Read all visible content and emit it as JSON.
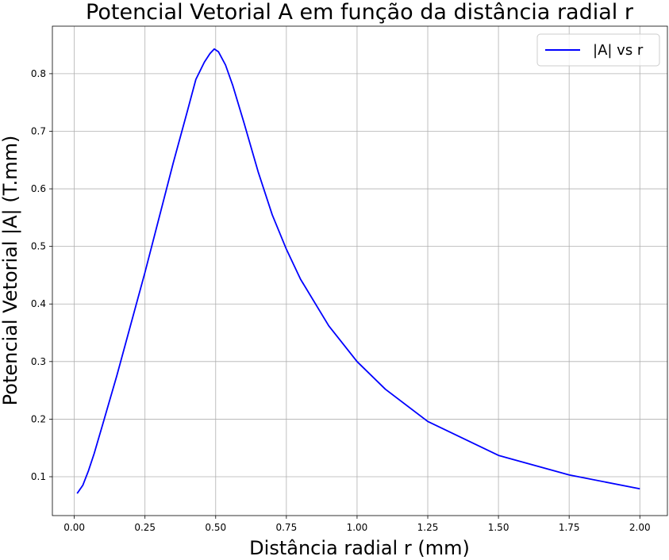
{
  "chart_data": {
    "type": "line",
    "title": "Potencial Vetorial A em função da distância radial r",
    "xlabel": "Distância radial r (mm)",
    "ylabel": "Potencial Vetorial |A| (T.mm)",
    "xlim": [
      -0.0775,
      2.0975
    ],
    "ylim": [
      0.0325,
      0.8825
    ],
    "xticks": [
      0.0,
      0.25,
      0.5,
      0.75,
      1.0,
      1.25,
      1.5,
      1.75,
      2.0
    ],
    "xtick_labels": [
      "0.00",
      "0.25",
      "0.50",
      "0.75",
      "1.00",
      "1.25",
      "1.50",
      "1.75",
      "2.00"
    ],
    "yticks": [
      0.1,
      0.2,
      0.3,
      0.4,
      0.5,
      0.6,
      0.7,
      0.8
    ],
    "ytick_labels": [
      "0.1",
      "0.2",
      "0.3",
      "0.4",
      "0.5",
      "0.6",
      "0.7",
      "0.8"
    ],
    "grid": true,
    "legend_position": "top-right",
    "series": [
      {
        "name": "|A| vs r",
        "color": "#0000ff",
        "x": [
          0.01,
          0.03,
          0.05,
          0.07,
          0.1,
          0.15,
          0.2,
          0.25,
          0.3,
          0.35,
          0.4,
          0.43,
          0.46,
          0.48,
          0.495,
          0.51,
          0.535,
          0.56,
          0.6,
          0.65,
          0.7,
          0.75,
          0.8,
          0.9,
          1.0,
          1.1,
          1.25,
          1.5,
          1.75,
          2.0
        ],
        "y": [
          0.071,
          0.085,
          0.11,
          0.14,
          0.19,
          0.275,
          0.365,
          0.455,
          0.55,
          0.645,
          0.735,
          0.79,
          0.82,
          0.835,
          0.843,
          0.838,
          0.815,
          0.78,
          0.715,
          0.63,
          0.555,
          0.495,
          0.443,
          0.362,
          0.3,
          0.252,
          0.196,
          0.137,
          0.103,
          0.079
        ]
      }
    ]
  }
}
